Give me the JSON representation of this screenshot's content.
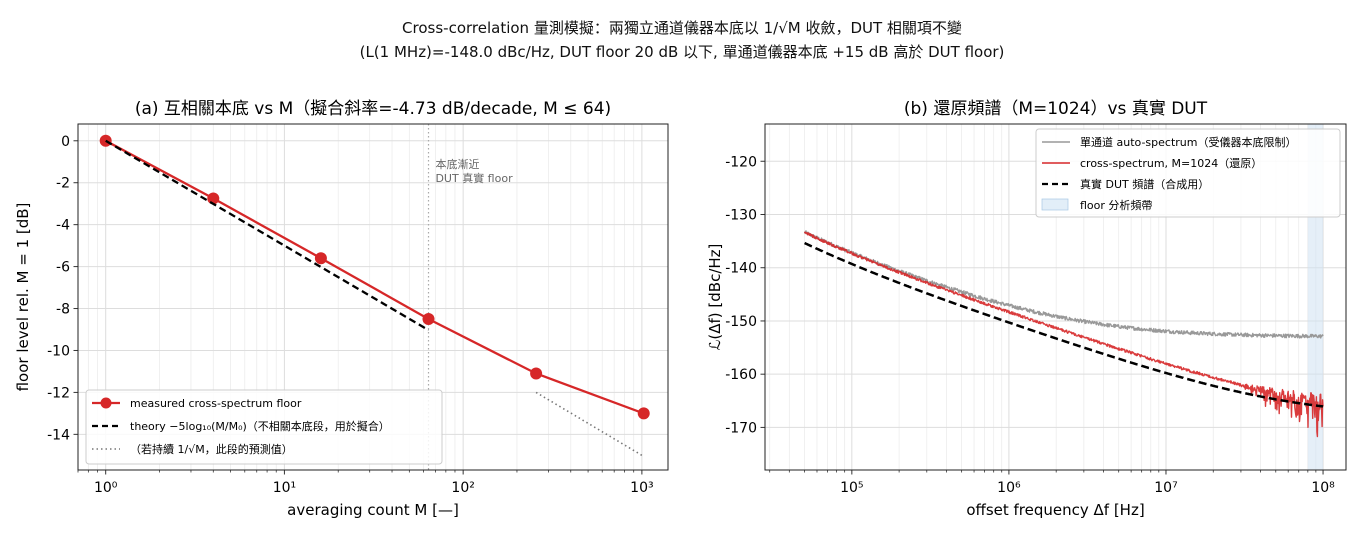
{
  "figure": {
    "suptitle_line1": "Cross-correlation 量測模擬：兩獨立通道儀器本底以 1/√M 收斂，DUT 相關項不變",
    "suptitle_line2": "(L(1 MHz)=-148.0 dBc/Hz, DUT floor 20 dB 以下, 單通道儀器本底 +15 dB 高於 DUT floor)"
  },
  "chart_data": [
    {
      "type": "line",
      "title": "(a) 互相關本底 vs M（擬合斜率=-4.73 dB/decade, M ≤ 64)",
      "xlabel": "averaging count M [—]",
      "ylabel": "floor level rel. M = 1 [dB]",
      "xscale": "log",
      "xlim": [
        0.7,
        1400
      ],
      "ylim": [
        -15.7,
        0.8
      ],
      "xticks": [
        1,
        10,
        100,
        1000
      ],
      "xtick_labels": [
        "10⁰",
        "10¹",
        "10²",
        "10³"
      ],
      "yticks": [
        0,
        -2,
        -4,
        -6,
        -8,
        -10,
        -12,
        -14
      ],
      "ytick_labels": [
        "0",
        "-2",
        "-4",
        "-6",
        "-8",
        "-10",
        "-12",
        "-14"
      ],
      "grid": true,
      "legend_position": "lower-left",
      "series": [
        {
          "name": "measured cross-spectrum floor",
          "color": "#d62728",
          "style": "solid-marker",
          "x": [
            1,
            4,
            16,
            64,
            256,
            1024
          ],
          "y": [
            0,
            -2.75,
            -5.6,
            -8.5,
            -11.1,
            -13.0
          ]
        },
        {
          "name": "theory −5log₁₀(M/M₀)（不相關本底段，用於擬合）",
          "color": "#000000",
          "style": "dashed",
          "x": [
            1,
            64
          ],
          "y": [
            0,
            -9.03
          ]
        },
        {
          "name": "（若持續 1/√M，此段的預測值）",
          "color": "#777777",
          "style": "dotted",
          "x": [
            256,
            1024
          ],
          "y": [
            -12.0,
            -15.05
          ]
        }
      ],
      "vline": {
        "x": 64,
        "color": "#aaaaaa"
      },
      "annotation": {
        "line1": "本底漸近",
        "line2": "DUT 真實 floor",
        "x": 70,
        "y": -1.3
      }
    },
    {
      "type": "line",
      "title": "(b) 還原頻譜（M=1024）vs 真實 DUT",
      "xlabel": "offset frequency Δf [Hz]",
      "ylabel": "ℒ(Δf) [dBc/Hz]",
      "xscale": "log",
      "xlim": [
        28000,
        140000000
      ],
      "ylim": [
        -178,
        -113
      ],
      "xticks": [
        100000,
        1000000,
        10000000,
        100000000
      ],
      "xtick_labels": [
        "10⁵",
        "10⁶",
        "10⁷",
        "10⁸"
      ],
      "yticks": [
        -120,
        -130,
        -140,
        -150,
        -160,
        -170
      ],
      "ytick_labels": [
        "-120",
        "-130",
        "-140",
        "-150",
        "-160",
        "-170"
      ],
      "grid": true,
      "legend_position": "top-right",
      "series": [
        {
          "name": "單通道 auto-spectrum（受儀器本底限制）",
          "color": "#999999",
          "style": "solid",
          "model": {
            "a1": -148.5,
            "b1": 15,
            "floor": -153
          }
        },
        {
          "name": "cross-spectrum, M=1024（還原）",
          "color": "#d62728",
          "style": "solid",
          "model": {
            "a1": -148.5,
            "b1": 15,
            "floor": -168
          }
        },
        {
          "name": "真實 DUT 頻譜（合成用）",
          "color": "#000000",
          "style": "dashed",
          "model": {
            "a1": -150.5,
            "b1": 15,
            "floor": -168
          }
        }
      ],
      "band": {
        "name": "floor 分析頻帶",
        "x0": 80000000,
        "x1": 100000000,
        "color": "#cfe2f3"
      },
      "x_start": 50000,
      "x_end": 100000000
    }
  ]
}
